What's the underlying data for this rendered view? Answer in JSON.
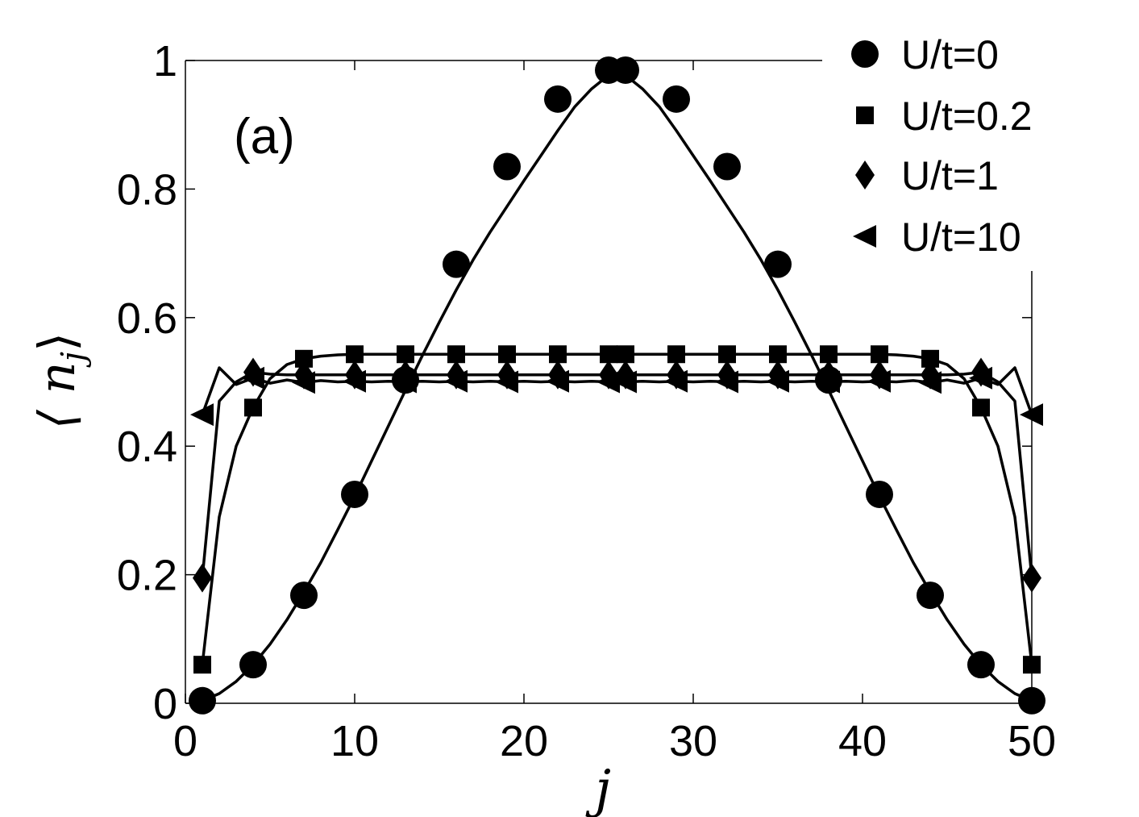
{
  "chart_data": {
    "type": "line",
    "panel_label": "(a)",
    "xlabel": "j",
    "ylabel": "⟨ n",
    "ylabel_sub": "j",
    "ylabel_close": "⟩",
    "xlim": [
      0,
      50
    ],
    "ylim": [
      0,
      1
    ],
    "x_ticks": [
      0,
      10,
      20,
      30,
      40,
      50
    ],
    "x_tick_labels": [
      "0",
      "10",
      "20",
      "30",
      "40",
      "50"
    ],
    "y_ticks": [
      0,
      0.2,
      0.4,
      0.6,
      0.8,
      1
    ],
    "y_tick_labels": [
      "0",
      "0.2",
      "0.4",
      "0.6",
      "0.8",
      "1"
    ],
    "grid": false,
    "legend_position": "top-right",
    "series": [
      {
        "name": "U/t=0",
        "marker": "circle",
        "line_x": [
          1,
          2,
          3,
          4,
          5,
          6,
          7,
          8,
          9,
          10,
          11,
          12,
          13,
          14,
          15,
          16,
          17,
          18,
          19,
          20,
          21,
          22,
          23,
          24,
          25,
          26,
          27,
          28,
          29,
          30,
          31,
          32,
          33,
          34,
          35,
          36,
          37,
          38,
          39,
          40,
          41,
          42,
          43,
          44,
          45,
          46,
          47,
          48,
          49,
          50
        ],
        "line_y": [
          0.004,
          0.015,
          0.034,
          0.06,
          0.092,
          0.13,
          0.173,
          0.219,
          0.27,
          0.322,
          0.377,
          0.432,
          0.487,
          0.541,
          0.593,
          0.643,
          0.69,
          0.733,
          0.773,
          0.813,
          0.852,
          0.891,
          0.928,
          0.956,
          0.977,
          0.977,
          0.956,
          0.928,
          0.891,
          0.852,
          0.813,
          0.773,
          0.733,
          0.69,
          0.643,
          0.593,
          0.541,
          0.487,
          0.432,
          0.377,
          0.322,
          0.27,
          0.219,
          0.173,
          0.13,
          0.092,
          0.06,
          0.034,
          0.015,
          0.004
        ],
        "marker_x": [
          1,
          4,
          7,
          10,
          13,
          16,
          19,
          22,
          25,
          26,
          29,
          32,
          35,
          38,
          41,
          44,
          47,
          50
        ],
        "marker_y": [
          0.004,
          0.06,
          0.168,
          0.325,
          0.503,
          0.683,
          0.835,
          0.94,
          0.985,
          0.985,
          0.94,
          0.835,
          0.683,
          0.503,
          0.325,
          0.168,
          0.06,
          0.004
        ]
      },
      {
        "name": "U/t=0.2",
        "marker": "square",
        "line_x": [
          1,
          2,
          3,
          4,
          5,
          6,
          7,
          8,
          9,
          10,
          11,
          12,
          13,
          14,
          15,
          16,
          17,
          18,
          19,
          20,
          21,
          22,
          23,
          24,
          25,
          26,
          27,
          28,
          29,
          30,
          31,
          32,
          33,
          34,
          35,
          36,
          37,
          38,
          39,
          40,
          41,
          42,
          43,
          44,
          45,
          46,
          47,
          48,
          49,
          50
        ],
        "line_y": [
          0.06,
          0.29,
          0.4,
          0.46,
          0.505,
          0.527,
          0.536,
          0.54,
          0.542,
          0.543,
          0.543,
          0.543,
          0.543,
          0.543,
          0.543,
          0.543,
          0.543,
          0.543,
          0.543,
          0.543,
          0.543,
          0.543,
          0.543,
          0.543,
          0.543,
          0.543,
          0.543,
          0.543,
          0.543,
          0.543,
          0.543,
          0.543,
          0.543,
          0.543,
          0.543,
          0.543,
          0.543,
          0.543,
          0.543,
          0.543,
          0.543,
          0.542,
          0.54,
          0.536,
          0.527,
          0.505,
          0.46,
          0.4,
          0.29,
          0.06
        ],
        "marker_x": [
          1,
          4,
          7,
          10,
          13,
          16,
          19,
          22,
          25,
          26,
          29,
          32,
          35,
          38,
          41,
          44,
          47,
          50
        ],
        "marker_y": [
          0.06,
          0.46,
          0.536,
          0.543,
          0.543,
          0.543,
          0.543,
          0.543,
          0.543,
          0.543,
          0.543,
          0.543,
          0.543,
          0.543,
          0.543,
          0.536,
          0.46,
          0.06
        ]
      },
      {
        "name": "U/t=1",
        "marker": "diamond",
        "line_x": [
          1,
          2,
          3,
          4,
          5,
          6,
          7,
          8,
          9,
          10,
          11,
          12,
          13,
          14,
          15,
          16,
          17,
          18,
          19,
          20,
          21,
          22,
          23,
          24,
          25,
          26,
          27,
          28,
          29,
          30,
          31,
          32,
          33,
          34,
          35,
          36,
          37,
          38,
          39,
          40,
          41,
          42,
          43,
          44,
          45,
          46,
          47,
          48,
          49,
          50
        ],
        "line_y": [
          0.195,
          0.47,
          0.5,
          0.515,
          0.512,
          0.511,
          0.511,
          0.511,
          0.511,
          0.511,
          0.511,
          0.511,
          0.511,
          0.511,
          0.511,
          0.511,
          0.511,
          0.511,
          0.511,
          0.511,
          0.511,
          0.511,
          0.511,
          0.511,
          0.511,
          0.511,
          0.511,
          0.511,
          0.511,
          0.511,
          0.511,
          0.511,
          0.511,
          0.511,
          0.511,
          0.511,
          0.511,
          0.511,
          0.511,
          0.511,
          0.511,
          0.511,
          0.511,
          0.511,
          0.511,
          0.512,
          0.515,
          0.5,
          0.47,
          0.195
        ],
        "marker_x": [
          1,
          4,
          7,
          10,
          13,
          16,
          19,
          22,
          25,
          26,
          29,
          32,
          35,
          38,
          41,
          44,
          47,
          50
        ],
        "marker_y": [
          0.195,
          0.515,
          0.511,
          0.511,
          0.511,
          0.511,
          0.511,
          0.511,
          0.511,
          0.511,
          0.511,
          0.511,
          0.511,
          0.511,
          0.511,
          0.511,
          0.515,
          0.195
        ]
      },
      {
        "name": "U/t=10",
        "marker": "triangle-left",
        "line_x": [
          1,
          2,
          3,
          4,
          5,
          6,
          7,
          8,
          9,
          10,
          11,
          12,
          13,
          14,
          15,
          16,
          17,
          18,
          19,
          20,
          21,
          22,
          23,
          24,
          25,
          26,
          27,
          28,
          29,
          30,
          31,
          32,
          33,
          34,
          35,
          36,
          37,
          38,
          39,
          40,
          41,
          42,
          43,
          44,
          45,
          46,
          47,
          48,
          49,
          50
        ],
        "line_y": [
          0.449,
          0.522,
          0.496,
          0.506,
          0.498,
          0.503,
          0.499,
          0.502,
          0.5,
          0.501,
          0.5,
          0.501,
          0.5,
          0.501,
          0.5,
          0.501,
          0.5,
          0.501,
          0.5,
          0.501,
          0.5,
          0.501,
          0.5,
          0.501,
          0.5,
          0.5,
          0.501,
          0.5,
          0.501,
          0.5,
          0.501,
          0.5,
          0.501,
          0.5,
          0.501,
          0.5,
          0.501,
          0.5,
          0.501,
          0.5,
          0.501,
          0.5,
          0.502,
          0.499,
          0.503,
          0.498,
          0.506,
          0.496,
          0.522,
          0.449
        ],
        "marker_x": [
          1,
          4,
          7,
          10,
          13,
          16,
          19,
          22,
          25,
          26,
          29,
          32,
          35,
          38,
          41,
          44,
          47,
          50
        ],
        "marker_y": [
          0.449,
          0.506,
          0.499,
          0.501,
          0.5,
          0.501,
          0.5,
          0.501,
          0.5,
          0.5,
          0.501,
          0.5,
          0.501,
          0.5,
          0.501,
          0.499,
          0.506,
          0.449
        ]
      }
    ]
  }
}
